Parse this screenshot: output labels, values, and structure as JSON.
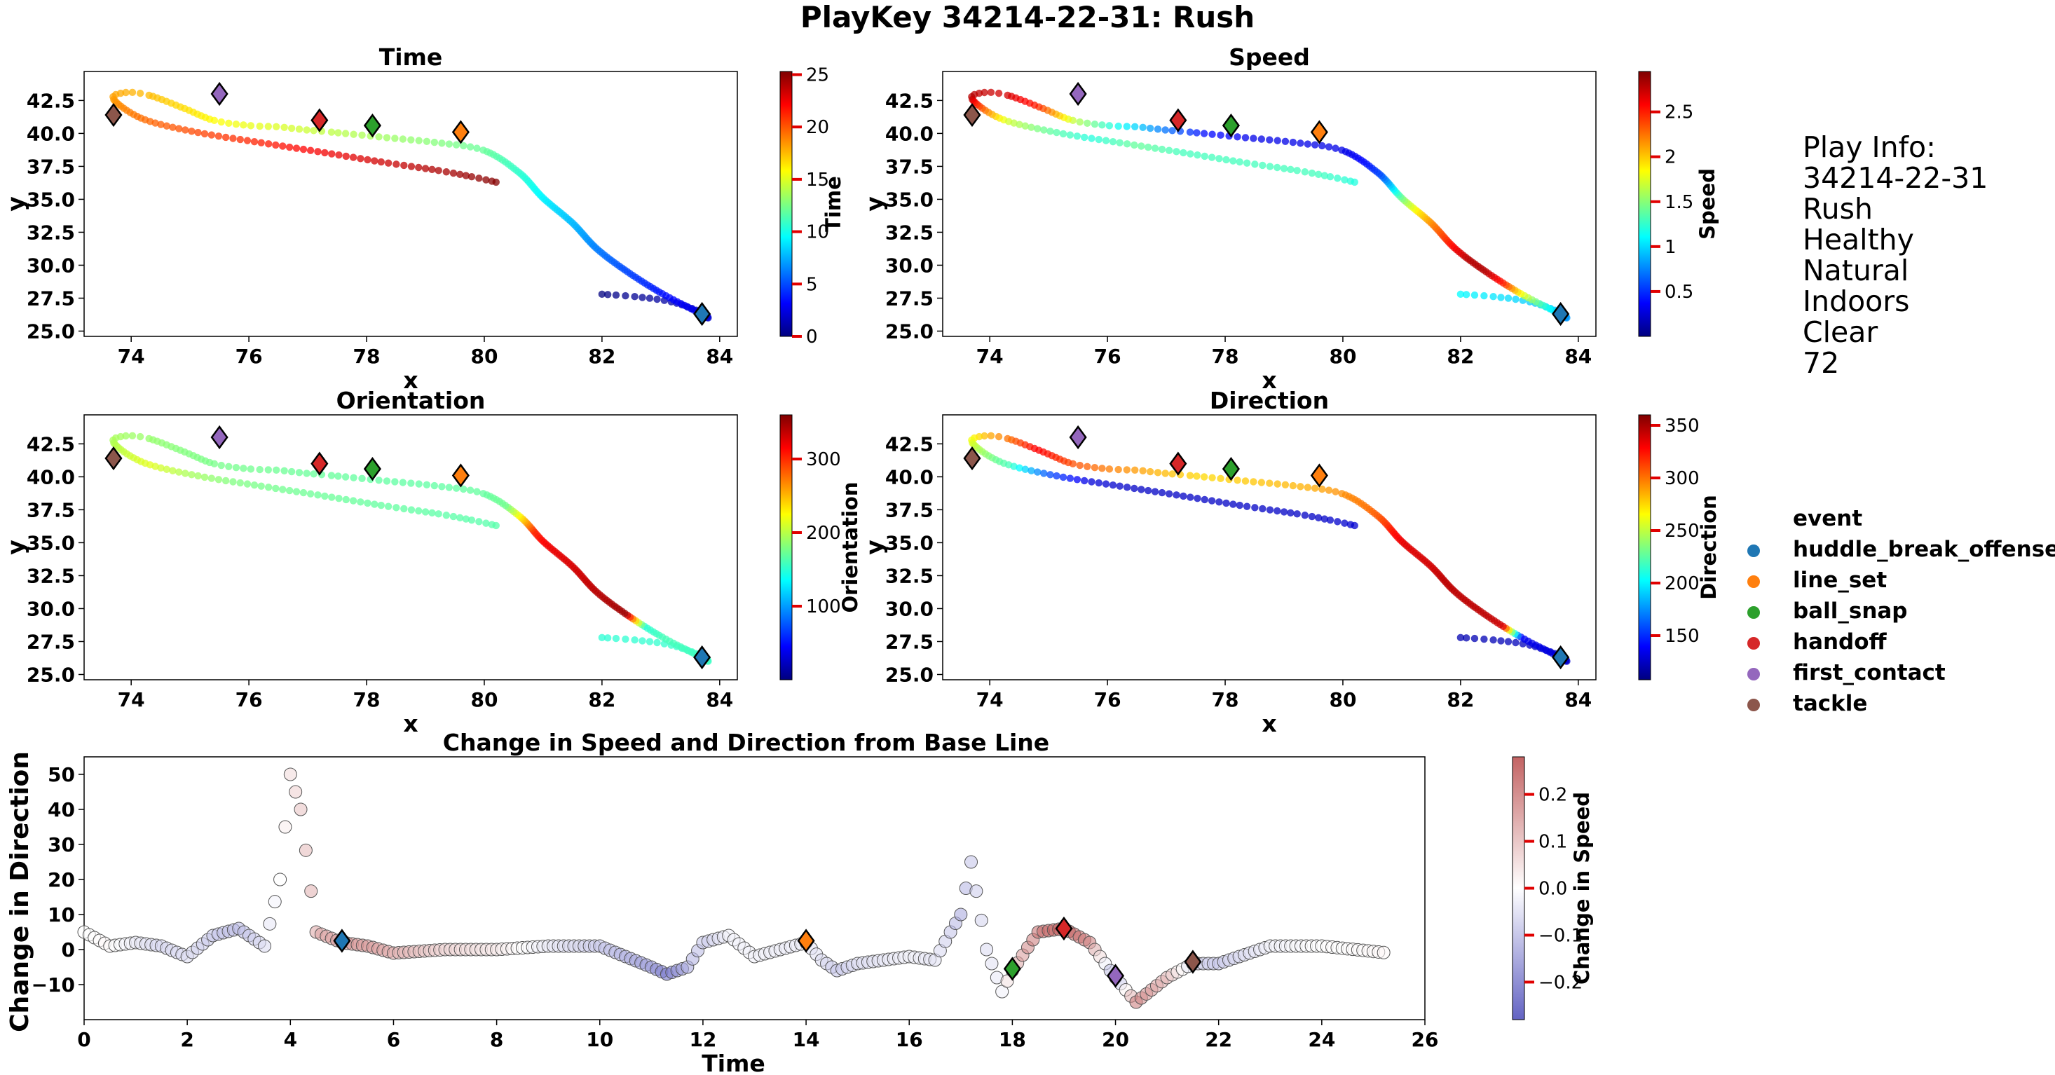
{
  "figure": {
    "suptitle": "PlayKey 34214-22-31: Rush"
  },
  "play_info": {
    "lines": [
      "Play Info:",
      "34214-22-31",
      "Rush",
      "Healthy",
      "Natural",
      "Indoors",
      "Clear",
      "72"
    ]
  },
  "legend": {
    "title": "event",
    "items": [
      {
        "label": "huddle_break_offense",
        "color": "#1f77b4"
      },
      {
        "label": "line_set",
        "color": "#ff7f0e"
      },
      {
        "label": "ball_snap",
        "color": "#2ca02c"
      },
      {
        "label": "handoff",
        "color": "#d62728"
      },
      {
        "label": "first_contact",
        "color": "#9467bd"
      },
      {
        "label": "tackle",
        "color": "#8c564b"
      }
    ]
  },
  "chart_data": [
    {
      "type": "scatter",
      "title": "Time",
      "xlabel": "x",
      "ylabel": "y",
      "xlim": [
        73.2,
        84.3
      ],
      "ylim": [
        24.6,
        44.7
      ],
      "xticks": [
        74,
        76,
        78,
        80,
        82,
        84
      ],
      "yticks": [
        25.0,
        27.5,
        30.0,
        32.5,
        35.0,
        37.5,
        40.0,
        42.5
      ],
      "color_by": "time",
      "colorbar": {
        "label": "Time",
        "range": [
          0,
          25.3
        ],
        "ticks": [
          0,
          5,
          10,
          15,
          20,
          25
        ],
        "colormap": "jet"
      },
      "track_anchor_points": [
        [
          82.0,
          27.8
        ],
        [
          82.6,
          27.6
        ],
        [
          83.2,
          27.2
        ],
        [
          83.7,
          26.4
        ],
        [
          83.8,
          26.0
        ],
        [
          83.6,
          26.5
        ],
        [
          83.0,
          27.9
        ],
        [
          82.4,
          29.6
        ],
        [
          81.9,
          31.3
        ],
        [
          81.5,
          33.2
        ],
        [
          81.0,
          35.1
        ],
        [
          80.6,
          37.0
        ],
        [
          80.0,
          38.7
        ],
        [
          79.2,
          39.3
        ],
        [
          78.3,
          39.7
        ],
        [
          77.4,
          40.1
        ],
        [
          76.9,
          40.3
        ],
        [
          76.5,
          40.5
        ],
        [
          76.0,
          40.6
        ],
        [
          75.4,
          41.0
        ],
        [
          74.9,
          41.9
        ],
        [
          74.3,
          42.9
        ],
        [
          73.9,
          43.1
        ],
        [
          73.7,
          42.6
        ],
        [
          74.2,
          41.1
        ],
        [
          75.1,
          40.1
        ],
        [
          76.2,
          39.3
        ],
        [
          77.2,
          38.6
        ],
        [
          78.3,
          37.8
        ],
        [
          79.2,
          37.2
        ],
        [
          79.8,
          36.7
        ],
        [
          80.2,
          36.3
        ]
      ],
      "track_x": [
        82.0,
        82.3,
        82.6,
        82.9,
        83.2,
        83.5,
        83.8,
        83.7,
        83.6,
        83.3,
        83.0,
        82.7,
        82.4,
        82.0,
        81.6,
        81.3,
        81.0,
        80.5,
        79.9,
        79.2,
        78.6,
        77.9,
        77.2,
        76.6,
        76.0,
        75.4,
        75.0,
        74.6,
        74.2,
        73.9,
        73.7,
        73.9,
        74.4,
        75.0,
        75.7,
        76.4,
        76.9
      ],
      "track_y": [
        27.8,
        27.7,
        27.6,
        27.4,
        27.2,
        26.8,
        26.0,
        26.5,
        27.1,
        28.3,
        29.5,
        30.8,
        32.0,
        33.3,
        34.5,
        35.8,
        37.0,
        38.5,
        39.3,
        40.1,
        40.3,
        40.5,
        40.6,
        40.9,
        41.3,
        42.0,
        42.6,
        43.0,
        43.1,
        42.6,
        41.4,
        40.5,
        40.0,
        39.5,
        38.9,
        37.9,
        36.4
      ],
      "track_values": [
        0.0,
        0.7,
        1.4,
        2.1,
        2.8,
        3.5,
        4.2,
        4.9,
        5.6,
        6.3,
        7.0,
        7.7,
        8.4,
        9.1,
        9.8,
        10.5,
        11.2,
        11.9,
        12.6,
        13.3,
        14.0,
        14.7,
        15.4,
        16.1,
        16.8,
        17.5,
        18.2,
        18.9,
        19.6,
        20.3,
        21.0,
        21.7,
        22.4,
        23.1,
        23.8,
        24.5,
        25.2
      ],
      "events": [
        {
          "event": "huddle_break_offense",
          "x": 83.7,
          "y": 26.3
        },
        {
          "event": "line_set",
          "x": 79.6,
          "y": 40.1
        },
        {
          "event": "ball_snap",
          "x": 78.1,
          "y": 40.6
        },
        {
          "event": "handoff",
          "x": 77.2,
          "y": 41.0
        },
        {
          "event": "first_contact",
          "x": 75.5,
          "y": 43.0
        },
        {
          "event": "tackle",
          "x": 73.7,
          "y": 41.4
        }
      ]
    },
    {
      "type": "scatter",
      "title": "Speed",
      "xlabel": "x",
      "ylabel": "y",
      "xlim": [
        73.2,
        84.3
      ],
      "ylim": [
        24.6,
        44.7
      ],
      "xticks": [
        74,
        76,
        78,
        80,
        82,
        84
      ],
      "yticks": [
        25.0,
        27.5,
        30.0,
        32.5,
        35.0,
        37.5,
        40.0,
        42.5
      ],
      "color_by": "speed",
      "colorbar": {
        "label": "Speed",
        "range": [
          0.0,
          2.95
        ],
        "ticks": [
          0.5,
          1.0,
          1.5,
          2.0,
          2.5
        ],
        "colormap": "jet"
      },
      "track_values": [
        1.1,
        1.0,
        0.9,
        0.8,
        1.2,
        1.8,
        2.5,
        2.8,
        2.8,
        2.6,
        2.4,
        2.2,
        1.9,
        1.5,
        1.0,
        0.6,
        0.4,
        0.3,
        0.3,
        0.3,
        0.4,
        0.8,
        1.3,
        1.9,
        2.5,
        2.7,
        2.8,
        2.3,
        1.7,
        1.4,
        1.2,
        1.4,
        1.3,
        1.3,
        1.3,
        1.3,
        1.2
      ],
      "events": [
        {
          "event": "huddle_break_offense",
          "x": 83.7,
          "y": 26.3
        },
        {
          "event": "line_set",
          "x": 79.6,
          "y": 40.1
        },
        {
          "event": "ball_snap",
          "x": 78.1,
          "y": 40.6
        },
        {
          "event": "handoff",
          "x": 77.2,
          "y": 41.0
        },
        {
          "event": "first_contact",
          "x": 75.5,
          "y": 43.0
        },
        {
          "event": "tackle",
          "x": 73.7,
          "y": 41.4
        }
      ]
    },
    {
      "type": "scatter",
      "title": "Orientation",
      "xlabel": "x",
      "ylabel": "y",
      "xlim": [
        73.2,
        84.3
      ],
      "ylim": [
        24.6,
        44.7
      ],
      "xticks": [
        74,
        76,
        78,
        80,
        82,
        84
      ],
      "yticks": [
        25.0,
        27.5,
        30.0,
        32.5,
        35.0,
        37.5,
        40.0,
        42.5
      ],
      "color_by": "orientation",
      "colorbar": {
        "label": "Orientation",
        "range": [
          0,
          360
        ],
        "ticks": [
          100,
          200,
          300
        ],
        "colormap": "jet"
      },
      "track_values": [
        150,
        152,
        154,
        156,
        158,
        160,
        150,
        350,
        345,
        340,
        335,
        330,
        325,
        318,
        300,
        240,
        175,
        170,
        168,
        168,
        170,
        172,
        175,
        178,
        182,
        188,
        195,
        205,
        215,
        195,
        180,
        175,
        172,
        170,
        168,
        166,
        165
      ],
      "events": [
        {
          "event": "huddle_break_offense",
          "x": 83.7,
          "y": 26.3
        },
        {
          "event": "line_set",
          "x": 79.6,
          "y": 40.1
        },
        {
          "event": "ball_snap",
          "x": 78.1,
          "y": 40.6
        },
        {
          "event": "handoff",
          "x": 77.2,
          "y": 41.0
        },
        {
          "event": "first_contact",
          "x": 75.5,
          "y": 43.0
        },
        {
          "event": "tackle",
          "x": 73.7,
          "y": 41.4
        }
      ]
    },
    {
      "type": "scatter",
      "title": "Direction",
      "xlabel": "x",
      "ylabel": "y",
      "xlim": [
        73.2,
        84.3
      ],
      "ylim": [
        24.6,
        44.7
      ],
      "xticks": [
        74,
        76,
        78,
        80,
        82,
        84
      ],
      "yticks": [
        25.0,
        27.5,
        30.0,
        32.5,
        35.0,
        37.5,
        40.0,
        42.5
      ],
      "color_by": "direction",
      "colorbar": {
        "label": "Direction",
        "range": [
          108,
          360
        ],
        "ticks": [
          150,
          200,
          250,
          300,
          350
        ],
        "colormap": "jet"
      },
      "track_values": [
        120,
        122,
        125,
        128,
        132,
        136,
        340,
        345,
        345,
        345,
        345,
        340,
        338,
        335,
        325,
        310,
        300,
        295,
        285,
        280,
        275,
        285,
        300,
        315,
        330,
        300,
        260,
        240,
        220,
        160,
        130,
        125,
        125,
        125,
        125,
        125,
        128
      ],
      "events": [
        {
          "event": "huddle_break_offense",
          "x": 83.7,
          "y": 26.3
        },
        {
          "event": "line_set",
          "x": 79.6,
          "y": 40.1
        },
        {
          "event": "ball_snap",
          "x": 78.1,
          "y": 40.6
        },
        {
          "event": "handoff",
          "x": 77.2,
          "y": 41.0
        },
        {
          "event": "first_contact",
          "x": 75.5,
          "y": 43.0
        },
        {
          "event": "tackle",
          "x": 73.7,
          "y": 41.4
        }
      ]
    },
    {
      "type": "scatter",
      "title": "Change in Speed and Direction from Base Line",
      "xlabel": "Time",
      "ylabel": "Change in Direction",
      "xlim": [
        0,
        26
      ],
      "ylim": [
        -20,
        55
      ],
      "xticks": [
        0,
        2,
        4,
        6,
        8,
        10,
        12,
        14,
        16,
        18,
        20,
        22,
        24,
        26
      ],
      "yticks": [
        -10,
        0,
        10,
        20,
        30,
        40,
        50
      ],
      "color_by": "change_in_speed",
      "colorbar": {
        "label": "Change in Speed",
        "range": [
          -0.28,
          0.28
        ],
        "ticks": [
          -0.2,
          -0.1,
          0.0,
          0.1,
          0.2
        ],
        "tick_labels": [
          "−0.2",
          "−0.1",
          "0.0",
          "0.1",
          "0.2"
        ],
        "colormap": "seismic"
      },
      "anchors_t": [
        0,
        0.5,
        1,
        1.5,
        2,
        2.5,
        3,
        3.5,
        3.8,
        4,
        4.2,
        4.5,
        5,
        5.5,
        6,
        7,
        8,
        9,
        10,
        11,
        11.3,
        11.7,
        12,
        12.5,
        13,
        14,
        14.3,
        14.6,
        15,
        16,
        16.5,
        16.8,
        17,
        17.2,
        17.5,
        17.8,
        18,
        18.5,
        19,
        19.5,
        20,
        20.4,
        21,
        21.5,
        22,
        23,
        24,
        25.3
      ],
      "anchors_dir": [
        5,
        1,
        2,
        1,
        -2,
        4,
        6,
        1,
        20,
        50,
        40,
        5,
        2,
        1,
        -1,
        0,
        0,
        1,
        1,
        -5,
        -7,
        -5,
        2,
        4,
        -2,
        2,
        -3,
        -6,
        -4,
        -2,
        -3,
        5,
        10,
        25,
        0,
        -12,
        -6,
        5,
        6,
        2,
        -8,
        -15,
        -8,
        -4,
        -4,
        1,
        1,
        -1
      ],
      "anchors_speed": [
        0.0,
        0.01,
        -0.03,
        -0.06,
        -0.05,
        -0.08,
        -0.1,
        -0.05,
        0.0,
        0.05,
        0.08,
        0.12,
        0.15,
        0.15,
        0.12,
        0.06,
        0.03,
        -0.03,
        -0.08,
        -0.15,
        -0.2,
        -0.12,
        -0.08,
        -0.02,
        -0.02,
        -0.03,
        -0.05,
        -0.08,
        -0.05,
        -0.02,
        -0.04,
        -0.08,
        -0.12,
        -0.08,
        -0.05,
        -0.02,
        0.1,
        0.2,
        0.25,
        0.18,
        -0.15,
        0.18,
        0.1,
        -0.06,
        -0.08,
        -0.02,
        0.0,
        0.01
      ],
      "events": [
        {
          "event": "huddle_break_offense",
          "t": 5.0,
          "dir": 2.5
        },
        {
          "event": "line_set",
          "t": 14.0,
          "dir": 2.5
        },
        {
          "event": "ball_snap",
          "t": 18.0,
          "dir": -5.5
        },
        {
          "event": "handoff",
          "t": 19.0,
          "dir": 6.0
        },
        {
          "event": "first_contact",
          "t": 20.0,
          "dir": -7.5
        },
        {
          "event": "tackle",
          "t": 21.5,
          "dir": -3.5
        }
      ]
    }
  ]
}
